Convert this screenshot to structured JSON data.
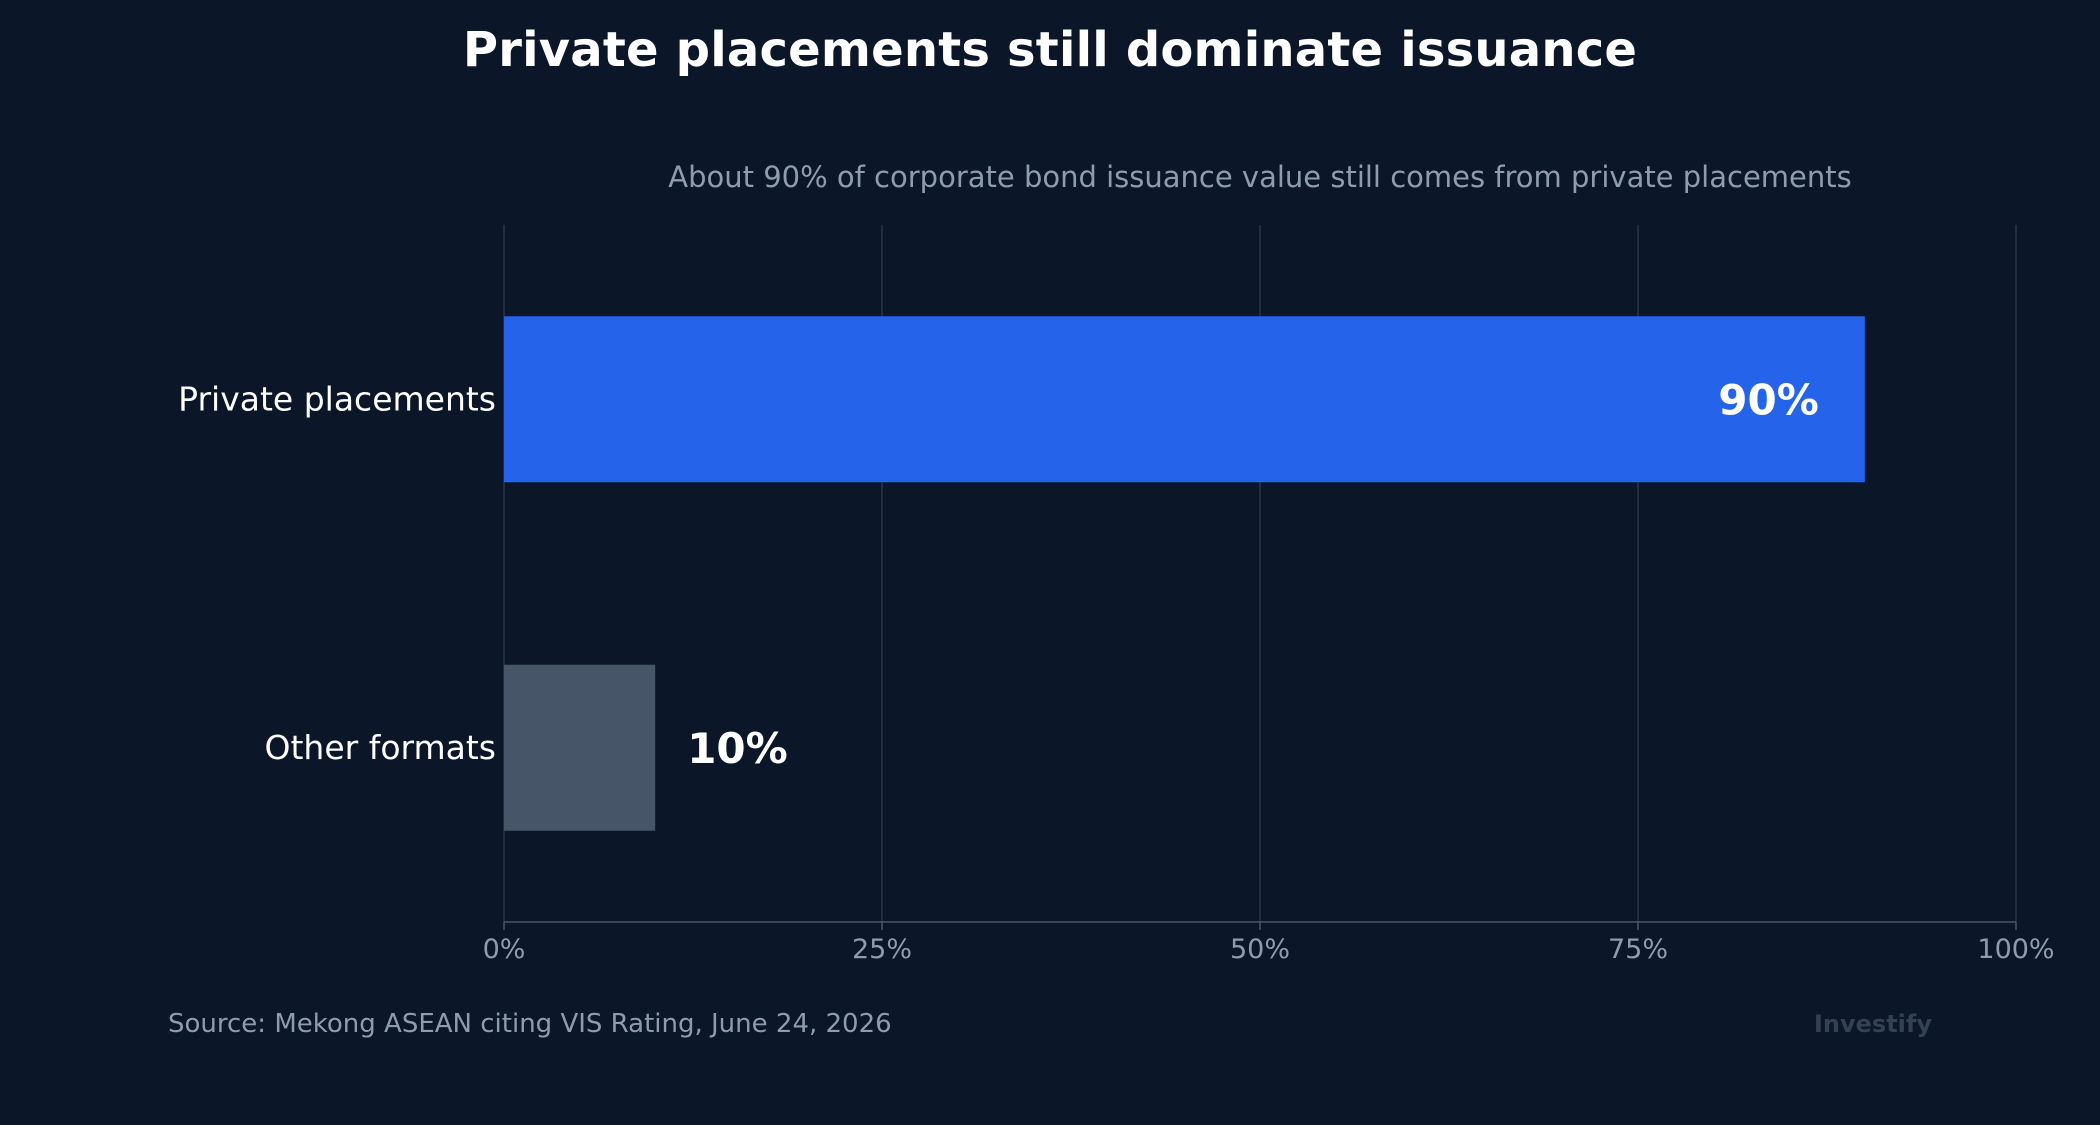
{
  "title": "Private placements still dominate issuance",
  "subtitle": "About 90% of corporate bond issuance value still comes from private placements",
  "source": "Source: Mekong ASEAN citing VIS Rating, June 24, 2026",
  "brand": "Investify",
  "colors": {
    "background": "#0b1728",
    "primary_bar": "#2563eb",
    "secondary_bar": "#475569",
    "grid": "#2b3647",
    "tick_text": "#8f9cb0",
    "category_text": "#ffffff",
    "value_label": "#ffffff"
  },
  "chart_data": {
    "type": "bar",
    "orientation": "horizontal",
    "categories": [
      "Private placements",
      "Other formats"
    ],
    "values": [
      90,
      10
    ],
    "value_labels": [
      "90%",
      "10%"
    ],
    "xlim": [
      0,
      100
    ],
    "xticks": [
      0,
      25,
      50,
      75,
      100
    ],
    "xtick_labels": [
      "0%",
      "25%",
      "50%",
      "75%",
      "100%"
    ],
    "xlabel": "",
    "ylabel": "",
    "grid": "vertical",
    "legend": "none"
  }
}
